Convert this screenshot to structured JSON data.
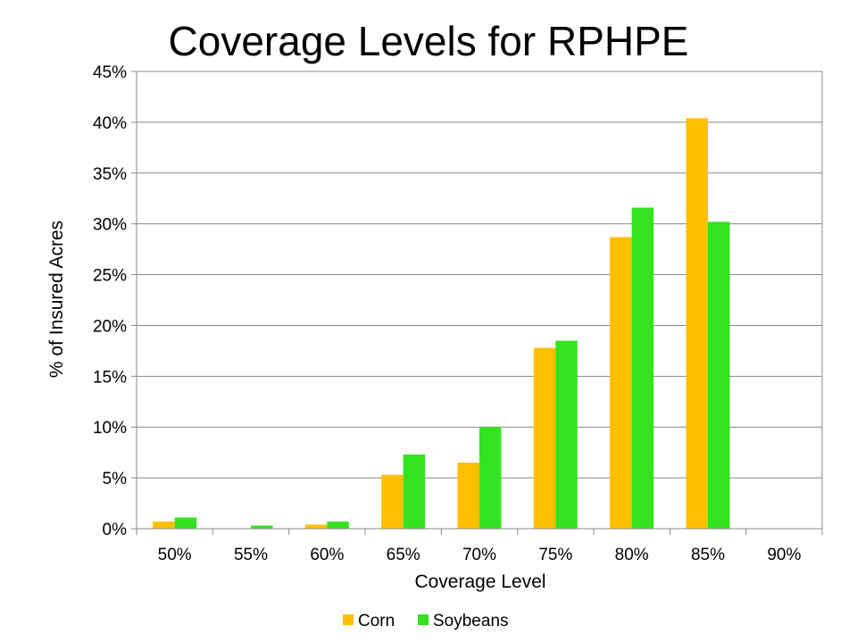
{
  "chart_data": {
    "type": "bar",
    "title": "Coverage Levels for RPHPE",
    "xlabel": "Coverage Level",
    "ylabel": "% of Insured Acres",
    "categories": [
      "50%",
      "55%",
      "60%",
      "65%",
      "70%",
      "75%",
      "80%",
      "85%",
      "90%"
    ],
    "series": [
      {
        "name": "Corn",
        "color": "#FFC000",
        "values": [
          0.7,
          0.0,
          0.4,
          5.3,
          6.5,
          17.8,
          28.7,
          40.4,
          0.0
        ]
      },
      {
        "name": "Soybeans",
        "color": "#33E31E",
        "values": [
          1.1,
          0.3,
          0.7,
          7.3,
          10.0,
          18.5,
          31.6,
          30.2,
          0.0
        ]
      }
    ],
    "ylim": [
      0,
      45
    ],
    "yticks": [
      "0%",
      "5%",
      "10%",
      "15%",
      "20%",
      "25%",
      "30%",
      "35%",
      "40%",
      "45%"
    ],
    "grid": true,
    "legend_position": "bottom"
  }
}
